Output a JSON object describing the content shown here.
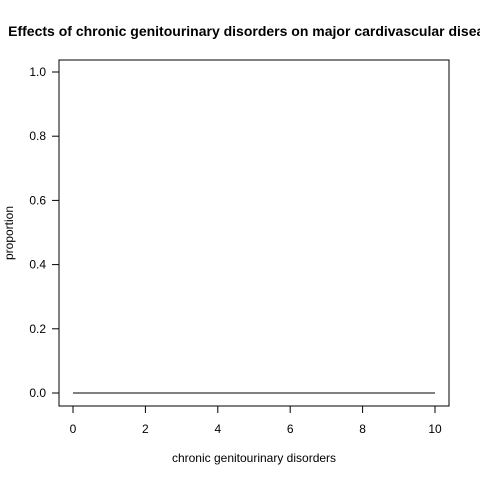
{
  "chart_data": {
    "type": "line",
    "title": "Effects of chronic genitourinary disorders on major cardivascular disease",
    "xlabel": "chronic genitourinary disorders",
    "ylabel": "proportion",
    "xlim": [
      0,
      10
    ],
    "ylim": [
      0,
      1
    ],
    "x_ticks": [
      0,
      2,
      4,
      6,
      8,
      10
    ],
    "y_ticks": [
      0.0,
      0.2,
      0.4,
      0.6,
      0.8,
      1.0
    ],
    "x_tick_labels": [
      "0",
      "2",
      "4",
      "6",
      "8",
      "10"
    ],
    "y_tick_labels": [
      "0.0",
      "0.2",
      "0.4",
      "0.6",
      "0.8",
      "1.0"
    ],
    "grid": false,
    "series": [
      {
        "x": [
          0,
          1,
          2,
          3,
          4,
          5,
          6,
          7,
          8,
          9,
          10
        ],
        "values": [
          0,
          0,
          0,
          0,
          0,
          0,
          0,
          0,
          0,
          0,
          0
        ],
        "color": "#000000"
      }
    ]
  }
}
